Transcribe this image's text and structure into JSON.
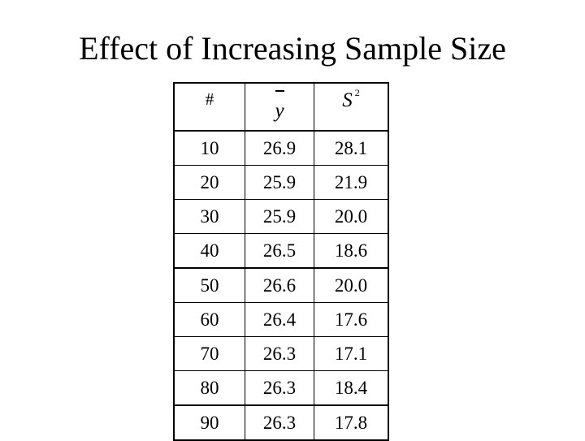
{
  "title": "Effect of Increasing Sample Size",
  "table": {
    "headers": {
      "n": "#",
      "mean_symbol": "y",
      "variance_symbol": "S",
      "variance_exponent": "2"
    },
    "rows": [
      {
        "n": "10",
        "mean": "26.9",
        "variance": "28.1"
      },
      {
        "n": "20",
        "mean": "25.9",
        "variance": "21.9"
      },
      {
        "n": "30",
        "mean": "25.9",
        "variance": "20.0"
      },
      {
        "n": "40",
        "mean": "26.5",
        "variance": "18.6"
      },
      {
        "n": "50",
        "mean": "26.6",
        "variance": "20.0"
      },
      {
        "n": "60",
        "mean": "26.4",
        "variance": "17.6"
      },
      {
        "n": "70",
        "mean": "26.3",
        "variance": "17.1"
      },
      {
        "n": "80",
        "mean": "26.3",
        "variance": "18.4"
      },
      {
        "n": "90",
        "mean": "26.3",
        "variance": "17.8"
      }
    ]
  }
}
